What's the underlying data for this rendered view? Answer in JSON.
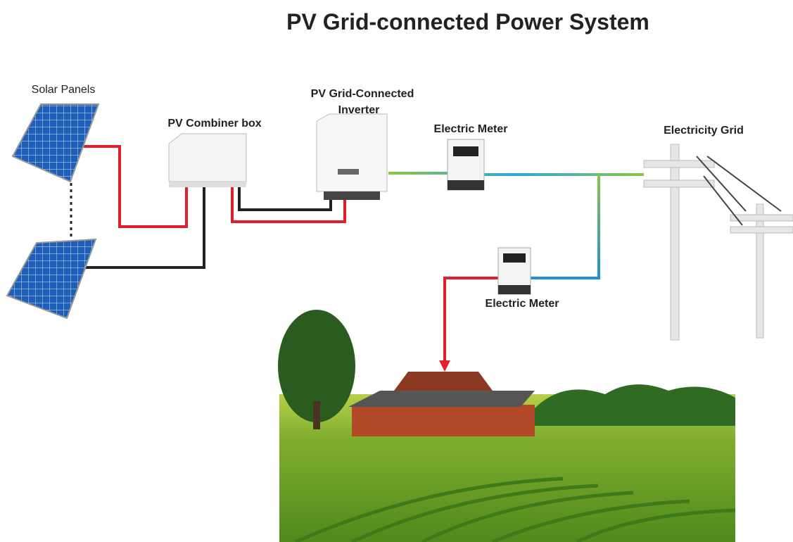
{
  "title": "PV Grid-connected Power System",
  "nodes": [
    {
      "lines": [
        "Solar Panels"
      ]
    },
    {
      "lines": [
        "PV Combiner box"
      ]
    },
    {
      "lines": [
        "PV Grid-Connected",
        "Inverter"
      ]
    },
    {
      "lines": [
        "Electric Meter"
      ]
    },
    {
      "lines": [
        "Electricity Grid"
      ]
    },
    {
      "lines": [
        "Electric Meter"
      ]
    }
  ]
}
